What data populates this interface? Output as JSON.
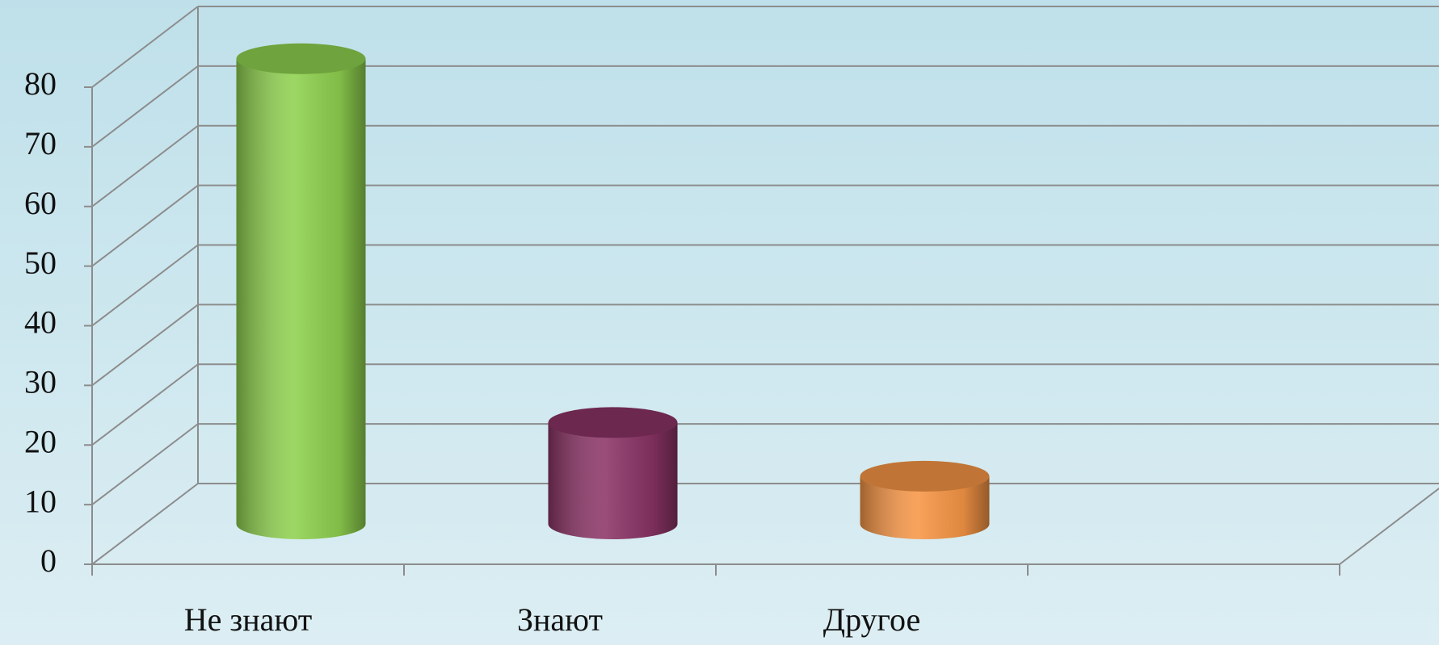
{
  "chart_data": {
    "type": "bar",
    "categories": [
      "Не знают",
      "Знают",
      "Другое",
      null
    ],
    "values": [
      78,
      17,
      8,
      null
    ],
    "colors": [
      "#8fd14f",
      "#8b3466",
      "#f79646",
      null
    ],
    "ylim": [
      0,
      80
    ],
    "yticks": [
      0,
      10,
      20,
      30,
      40,
      50,
      60,
      70,
      80
    ],
    "grid": true
  }
}
